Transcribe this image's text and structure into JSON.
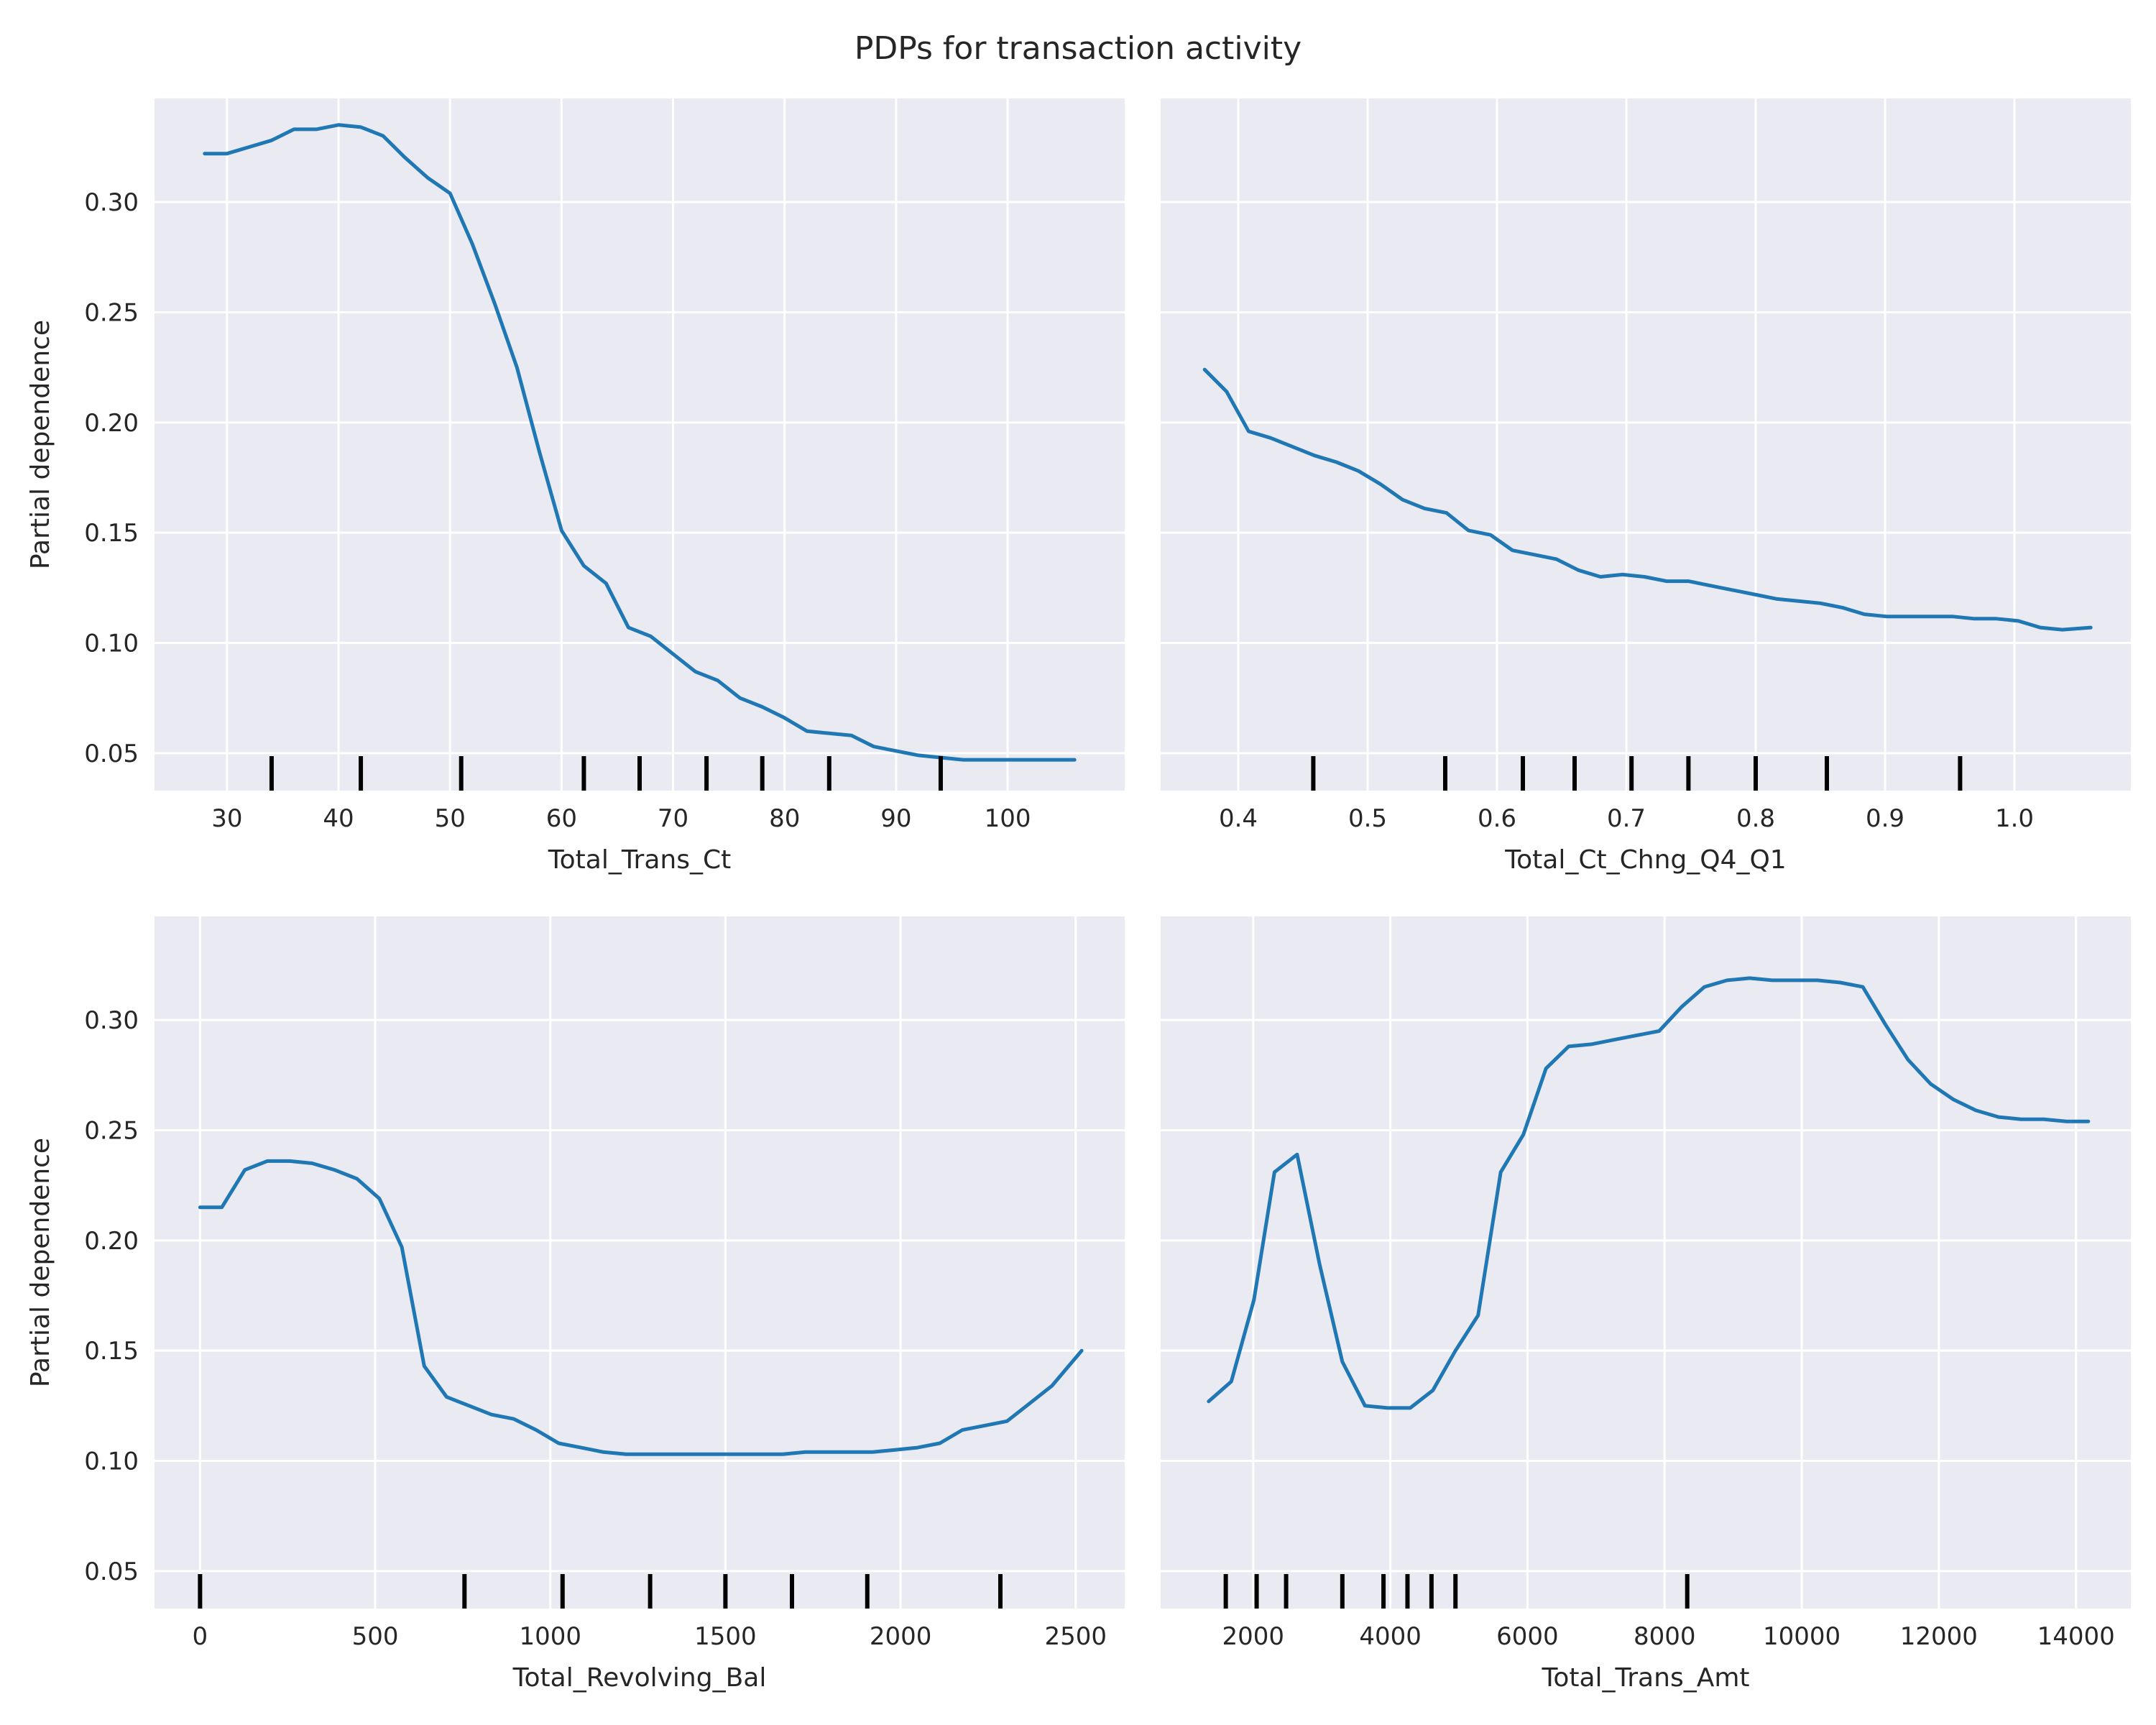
{
  "figure_title": "PDPs for transaction activity",
  "line_color": "#1f77b4",
  "decile_color": "#000000",
  "chart_data": [
    {
      "type": "line",
      "xlabel": "Total_Trans_Ct",
      "ylabel": "Partial dependence",
      "xlim": [
        23.5,
        110.5
      ],
      "ylim": [
        0.033,
        0.347
      ],
      "xticks": [
        30,
        40,
        50,
        60,
        70,
        80,
        90,
        100
      ],
      "xtick_labels": [
        "30",
        "40",
        "50",
        "60",
        "70",
        "80",
        "90",
        "100"
      ],
      "yticks": [
        0.05,
        0.1,
        0.15,
        0.2,
        0.25,
        0.3
      ],
      "ytick_labels": [
        "0.05",
        "0.10",
        "0.15",
        "0.20",
        "0.25",
        "0.30"
      ],
      "show_ytick_labels": true,
      "x": [
        28,
        30,
        32,
        34,
        36,
        38,
        40,
        42,
        44,
        46,
        48,
        50,
        52,
        54,
        56,
        58,
        60,
        62,
        64,
        66,
        68,
        70,
        72,
        74,
        76,
        78,
        80,
        82,
        84,
        86,
        88,
        90,
        92,
        94,
        96,
        98,
        100,
        102,
        104,
        106
      ],
      "y": [
        0.322,
        0.322,
        0.325,
        0.328,
        0.333,
        0.333,
        0.335,
        0.334,
        0.33,
        0.32,
        0.311,
        0.304,
        0.281,
        0.254,
        0.225,
        0.187,
        0.151,
        0.135,
        0.127,
        0.107,
        0.103,
        0.095,
        0.087,
        0.083,
        0.075,
        0.071,
        0.066,
        0.06,
        0.059,
        0.058,
        0.053,
        0.051,
        0.049,
        0.048,
        0.047,
        0.047,
        0.047,
        0.047,
        0.047,
        0.047
      ],
      "deciles": [
        34,
        42,
        51,
        62,
        67,
        73,
        78,
        84,
        94
      ]
    },
    {
      "type": "line",
      "xlabel": "Total_Ct_Chng_Q4_Q1",
      "ylabel": "",
      "xlim": [
        0.34,
        1.09
      ],
      "ylim": [
        0.033,
        0.347
      ],
      "xticks": [
        0.4,
        0.5,
        0.6,
        0.7,
        0.8,
        0.9,
        1.0
      ],
      "xtick_labels": [
        "0.4",
        "0.5",
        "0.6",
        "0.7",
        "0.8",
        "0.9",
        "1.0"
      ],
      "yticks": [
        0.05,
        0.1,
        0.15,
        0.2,
        0.25,
        0.3
      ],
      "ytick_labels": [
        "0.05",
        "0.10",
        "0.15",
        "0.20",
        "0.25",
        "0.30"
      ],
      "show_ytick_labels": false,
      "x": [
        0.374,
        0.391,
        0.408,
        0.425,
        0.442,
        0.459,
        0.476,
        0.493,
        0.51,
        0.527,
        0.544,
        0.561,
        0.578,
        0.595,
        0.612,
        0.629,
        0.646,
        0.663,
        0.68,
        0.697,
        0.714,
        0.731,
        0.748,
        0.765,
        0.782,
        0.799,
        0.816,
        0.833,
        0.85,
        0.867,
        0.884,
        0.901,
        0.918,
        0.935,
        0.952,
        0.969,
        0.986,
        1.003,
        1.02,
        1.037,
        1.059
      ],
      "y": [
        0.224,
        0.214,
        0.196,
        0.193,
        0.189,
        0.185,
        0.182,
        0.178,
        0.172,
        0.165,
        0.161,
        0.159,
        0.151,
        0.149,
        0.142,
        0.14,
        0.138,
        0.133,
        0.13,
        0.131,
        0.13,
        0.128,
        0.128,
        0.126,
        0.124,
        0.122,
        0.12,
        0.119,
        0.118,
        0.116,
        0.113,
        0.112,
        0.112,
        0.112,
        0.112,
        0.111,
        0.111,
        0.11,
        0.107,
        0.106,
        0.107
      ],
      "deciles": [
        0.458,
        0.56,
        0.62,
        0.66,
        0.704,
        0.748,
        0.8,
        0.855,
        0.958
      ]
    },
    {
      "type": "line",
      "xlabel": "Total_Revolving_Bal",
      "ylabel": "Partial dependence",
      "xlim": [
        -130,
        2640
      ],
      "ylim": [
        0.033,
        0.347
      ],
      "xticks": [
        0,
        500,
        1000,
        1500,
        2000,
        2500
      ],
      "xtick_labels": [
        "0",
        "500",
        "1000",
        "1500",
        "2000",
        "2500"
      ],
      "yticks": [
        0.05,
        0.1,
        0.15,
        0.2,
        0.25,
        0.3
      ],
      "ytick_labels": [
        "0.05",
        "0.10",
        "0.15",
        "0.20",
        "0.25",
        "0.30"
      ],
      "show_ytick_labels": true,
      "x": [
        0,
        62,
        128,
        192,
        256,
        320,
        384,
        448,
        512,
        576,
        640,
        704,
        768,
        832,
        896,
        960,
        1024,
        1088,
        1152,
        1216,
        1280,
        1344,
        1408,
        1472,
        1536,
        1600,
        1664,
        1728,
        1792,
        1856,
        1920,
        1984,
        2048,
        2112,
        2176,
        2240,
        2304,
        2368,
        2432,
        2517
      ],
      "y": [
        0.215,
        0.215,
        0.232,
        0.236,
        0.236,
        0.235,
        0.232,
        0.228,
        0.219,
        0.197,
        0.143,
        0.129,
        0.125,
        0.121,
        0.119,
        0.114,
        0.108,
        0.106,
        0.104,
        0.103,
        0.103,
        0.103,
        0.103,
        0.103,
        0.103,
        0.103,
        0.103,
        0.104,
        0.104,
        0.104,
        0.104,
        0.105,
        0.106,
        0.108,
        0.114,
        0.116,
        0.118,
        0.126,
        0.134,
        0.15
      ],
      "deciles": [
        0,
        755,
        1035,
        1285,
        1500,
        1690,
        1905,
        2285
      ]
    },
    {
      "type": "line",
      "xlabel": "Total_Trans_Amt",
      "ylabel": "",
      "xlim": [
        650,
        14800
      ],
      "ylim": [
        0.033,
        0.347
      ],
      "xticks": [
        2000,
        4000,
        6000,
        8000,
        10000,
        12000,
        14000
      ],
      "xtick_labels": [
        "2000",
        "4000",
        "6000",
        "8000",
        "10000",
        "12000",
        "14000"
      ],
      "yticks": [
        0.05,
        0.1,
        0.15,
        0.2,
        0.25,
        0.3
      ],
      "ytick_labels": [
        "0.05",
        "0.10",
        "0.15",
        "0.20",
        "0.25",
        "0.30"
      ],
      "show_ytick_labels": false,
      "x": [
        1350,
        1680,
        2010,
        2310,
        2640,
        2970,
        3300,
        3630,
        3960,
        4290,
        4620,
        4950,
        5280,
        5610,
        5940,
        6270,
        6600,
        6930,
        7260,
        7590,
        7920,
        8250,
        8580,
        8910,
        9240,
        9570,
        9900,
        10230,
        10560,
        10890,
        11220,
        11550,
        11880,
        12210,
        12540,
        12870,
        13200,
        13530,
        13860,
        14180
      ],
      "y": [
        0.127,
        0.136,
        0.173,
        0.231,
        0.239,
        0.189,
        0.145,
        0.125,
        0.124,
        0.124,
        0.132,
        0.15,
        0.166,
        0.231,
        0.248,
        0.278,
        0.288,
        0.289,
        0.291,
        0.293,
        0.295,
        0.306,
        0.315,
        0.318,
        0.319,
        0.318,
        0.318,
        0.318,
        0.317,
        0.315,
        0.298,
        0.282,
        0.271,
        0.264,
        0.259,
        0.256,
        0.255,
        0.255,
        0.254,
        0.254
      ],
      "deciles": [
        1600,
        2050,
        2480,
        3300,
        3900,
        4250,
        4600,
        4950,
        8330
      ]
    }
  ]
}
